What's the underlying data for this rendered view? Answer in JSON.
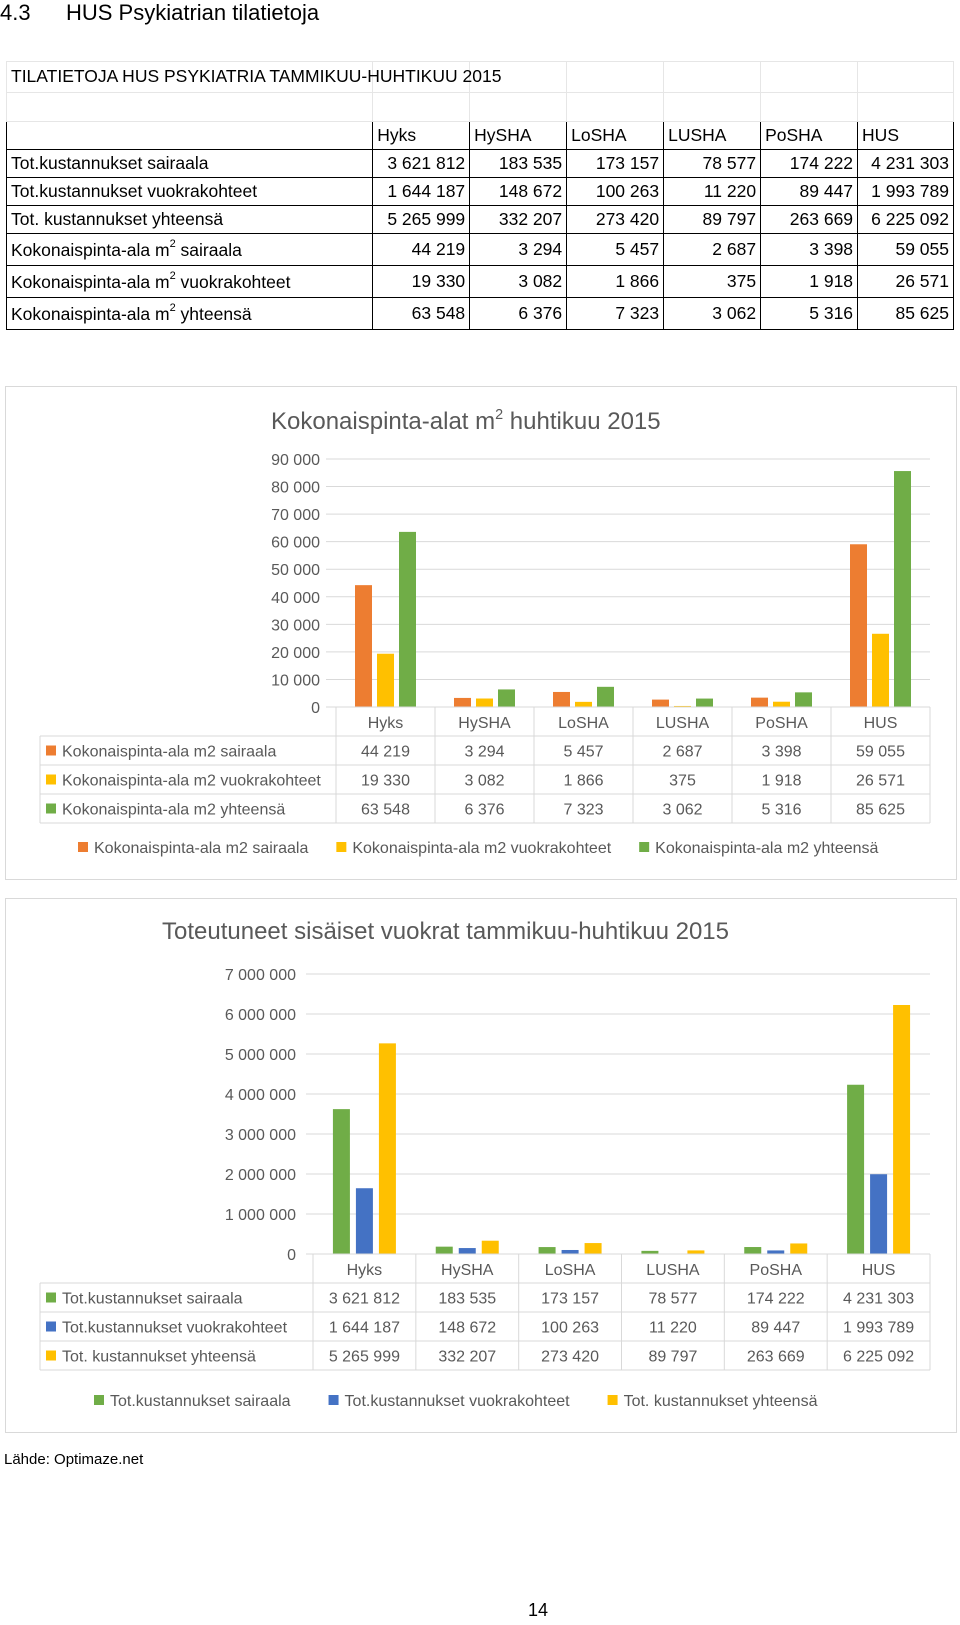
{
  "section": {
    "number": "4.3",
    "title": "HUS Psykiatrian tilatietoja"
  },
  "table": {
    "title": "TILATIETOJA HUS PSYKIATRIA TAMMIKUU-HUHTIKUU 2015",
    "columns": [
      "Hyks",
      "HySHA",
      "LoSHA",
      "LUSHA",
      "PoSHA",
      "HUS"
    ],
    "rows": [
      {
        "label": "Tot.kustannukset  sairaala",
        "values": [
          "3 621 812",
          "183 535",
          "173 157",
          "78 577",
          "174 222",
          "4 231 303"
        ]
      },
      {
        "label": "Tot.kustannukset  vuokrakohteet",
        "values": [
          "1 644 187",
          "148 672",
          "100 263",
          "11 220",
          "89 447",
          "1 993 789"
        ]
      },
      {
        "label": "Tot. kustannukset yhteensä",
        "values": [
          "5 265 999",
          "332 207",
          "273 420",
          "89 797",
          "263 669",
          "6 225 092"
        ]
      },
      {
        "label_pre": "Kokonaispinta-ala m",
        "sup": "2",
        "label_post": " sairaala",
        "values": [
          "44 219",
          "3 294",
          "5 457",
          "2 687",
          "3 398",
          "59 055"
        ]
      },
      {
        "label_pre": "Kokonaispinta-ala m",
        "sup": "2",
        "label_post": " vuokrakohteet",
        "values": [
          "19 330",
          "3 082",
          "1 866",
          "375",
          "1 918",
          "26 571"
        ]
      },
      {
        "label_pre": "Kokonaispinta-ala m",
        "sup": "2",
        "label_post": " yhteensä",
        "values": [
          "63 548",
          "6 376",
          "7 323",
          "3 062",
          "5 316",
          "85 625"
        ]
      }
    ]
  },
  "chart_data": [
    {
      "type": "bar",
      "title": "Kokonaispinta-alat m",
      "title_sup": "2",
      "title_suffix": " huhtikuu 2015",
      "categories": [
        "Hyks",
        "HySHA",
        "LoSHA",
        "LUSHA",
        "PoSHA",
        "HUS"
      ],
      "ylim": [
        0,
        90000
      ],
      "yticks": [
        0,
        10000,
        20000,
        30000,
        40000,
        50000,
        60000,
        70000,
        80000,
        90000
      ],
      "ytick_labels": [
        "0",
        "10 000",
        "20 000",
        "30 000",
        "40 000",
        "50 000",
        "60 000",
        "70 000",
        "80 000",
        "90 000"
      ],
      "grid": true,
      "legend": "bottom",
      "data_table": true,
      "series": [
        {
          "name": "Kokonaispinta-ala m2 sairaala",
          "color": "#ED7D31",
          "values": [
            44219,
            3294,
            5457,
            2687,
            3398,
            59055
          ],
          "labels": [
            "44 219",
            "3 294",
            "5 457",
            "2 687",
            "3 398",
            "59 055"
          ]
        },
        {
          "name": "Kokonaispinta-ala m2 vuokrakohteet",
          "color": "#FFC000",
          "values": [
            19330,
            3082,
            1866,
            375,
            1918,
            26571
          ],
          "labels": [
            "19 330",
            "3 082",
            "1 866",
            "375",
            "1 918",
            "26 571"
          ]
        },
        {
          "name": "Kokonaispinta-ala m2 yhteensä",
          "color": "#70AD47",
          "values": [
            63548,
            6376,
            7323,
            3062,
            5316,
            85625
          ],
          "labels": [
            "63 548",
            "6 376",
            "7 323",
            "3 062",
            "5 316",
            "85 625"
          ]
        }
      ]
    },
    {
      "type": "bar",
      "title": "Toteutuneet sisäiset vuokrat tammikuu-huhtikuu 2015",
      "title_sup": "",
      "title_suffix": "",
      "categories": [
        "Hyks",
        "HySHA",
        "LoSHA",
        "LUSHA",
        "PoSHA",
        "HUS"
      ],
      "ylim": [
        0,
        7000000
      ],
      "yticks": [
        0,
        1000000,
        2000000,
        3000000,
        4000000,
        5000000,
        6000000,
        7000000
      ],
      "ytick_labels": [
        "0",
        "1 000 000",
        "2 000 000",
        "3 000 000",
        "4 000 000",
        "5 000 000",
        "6 000 000",
        "7 000 000"
      ],
      "grid": true,
      "legend": "bottom",
      "data_table": true,
      "series": [
        {
          "name": "Tot.kustannukset  sairaala",
          "color": "#70AD47",
          "values": [
            3621812,
            183535,
            173157,
            78577,
            174222,
            4231303
          ],
          "labels": [
            "3 621 812",
            "183 535",
            "173 157",
            "78 577",
            "174 222",
            "4 231 303"
          ]
        },
        {
          "name": "Tot.kustannukset  vuokrakohteet",
          "color": "#4472C4",
          "values": [
            1644187,
            148672,
            100263,
            11220,
            89447,
            1993789
          ],
          "labels": [
            "1 644 187",
            "148 672",
            "100 263",
            "11 220",
            "89 447",
            "1 993 789"
          ]
        },
        {
          "name": "Tot. kustannukset yhteensä",
          "color": "#FFC000",
          "values": [
            5265999,
            332207,
            273420,
            89797,
            263669,
            6225092
          ],
          "labels": [
            "5 265 999",
            "332 207",
            "273 420",
            "89 797",
            "263 669",
            "6 225 092"
          ]
        }
      ]
    }
  ],
  "footer": {
    "source": "Lähde: Optimaze.net",
    "page_number": "14"
  }
}
